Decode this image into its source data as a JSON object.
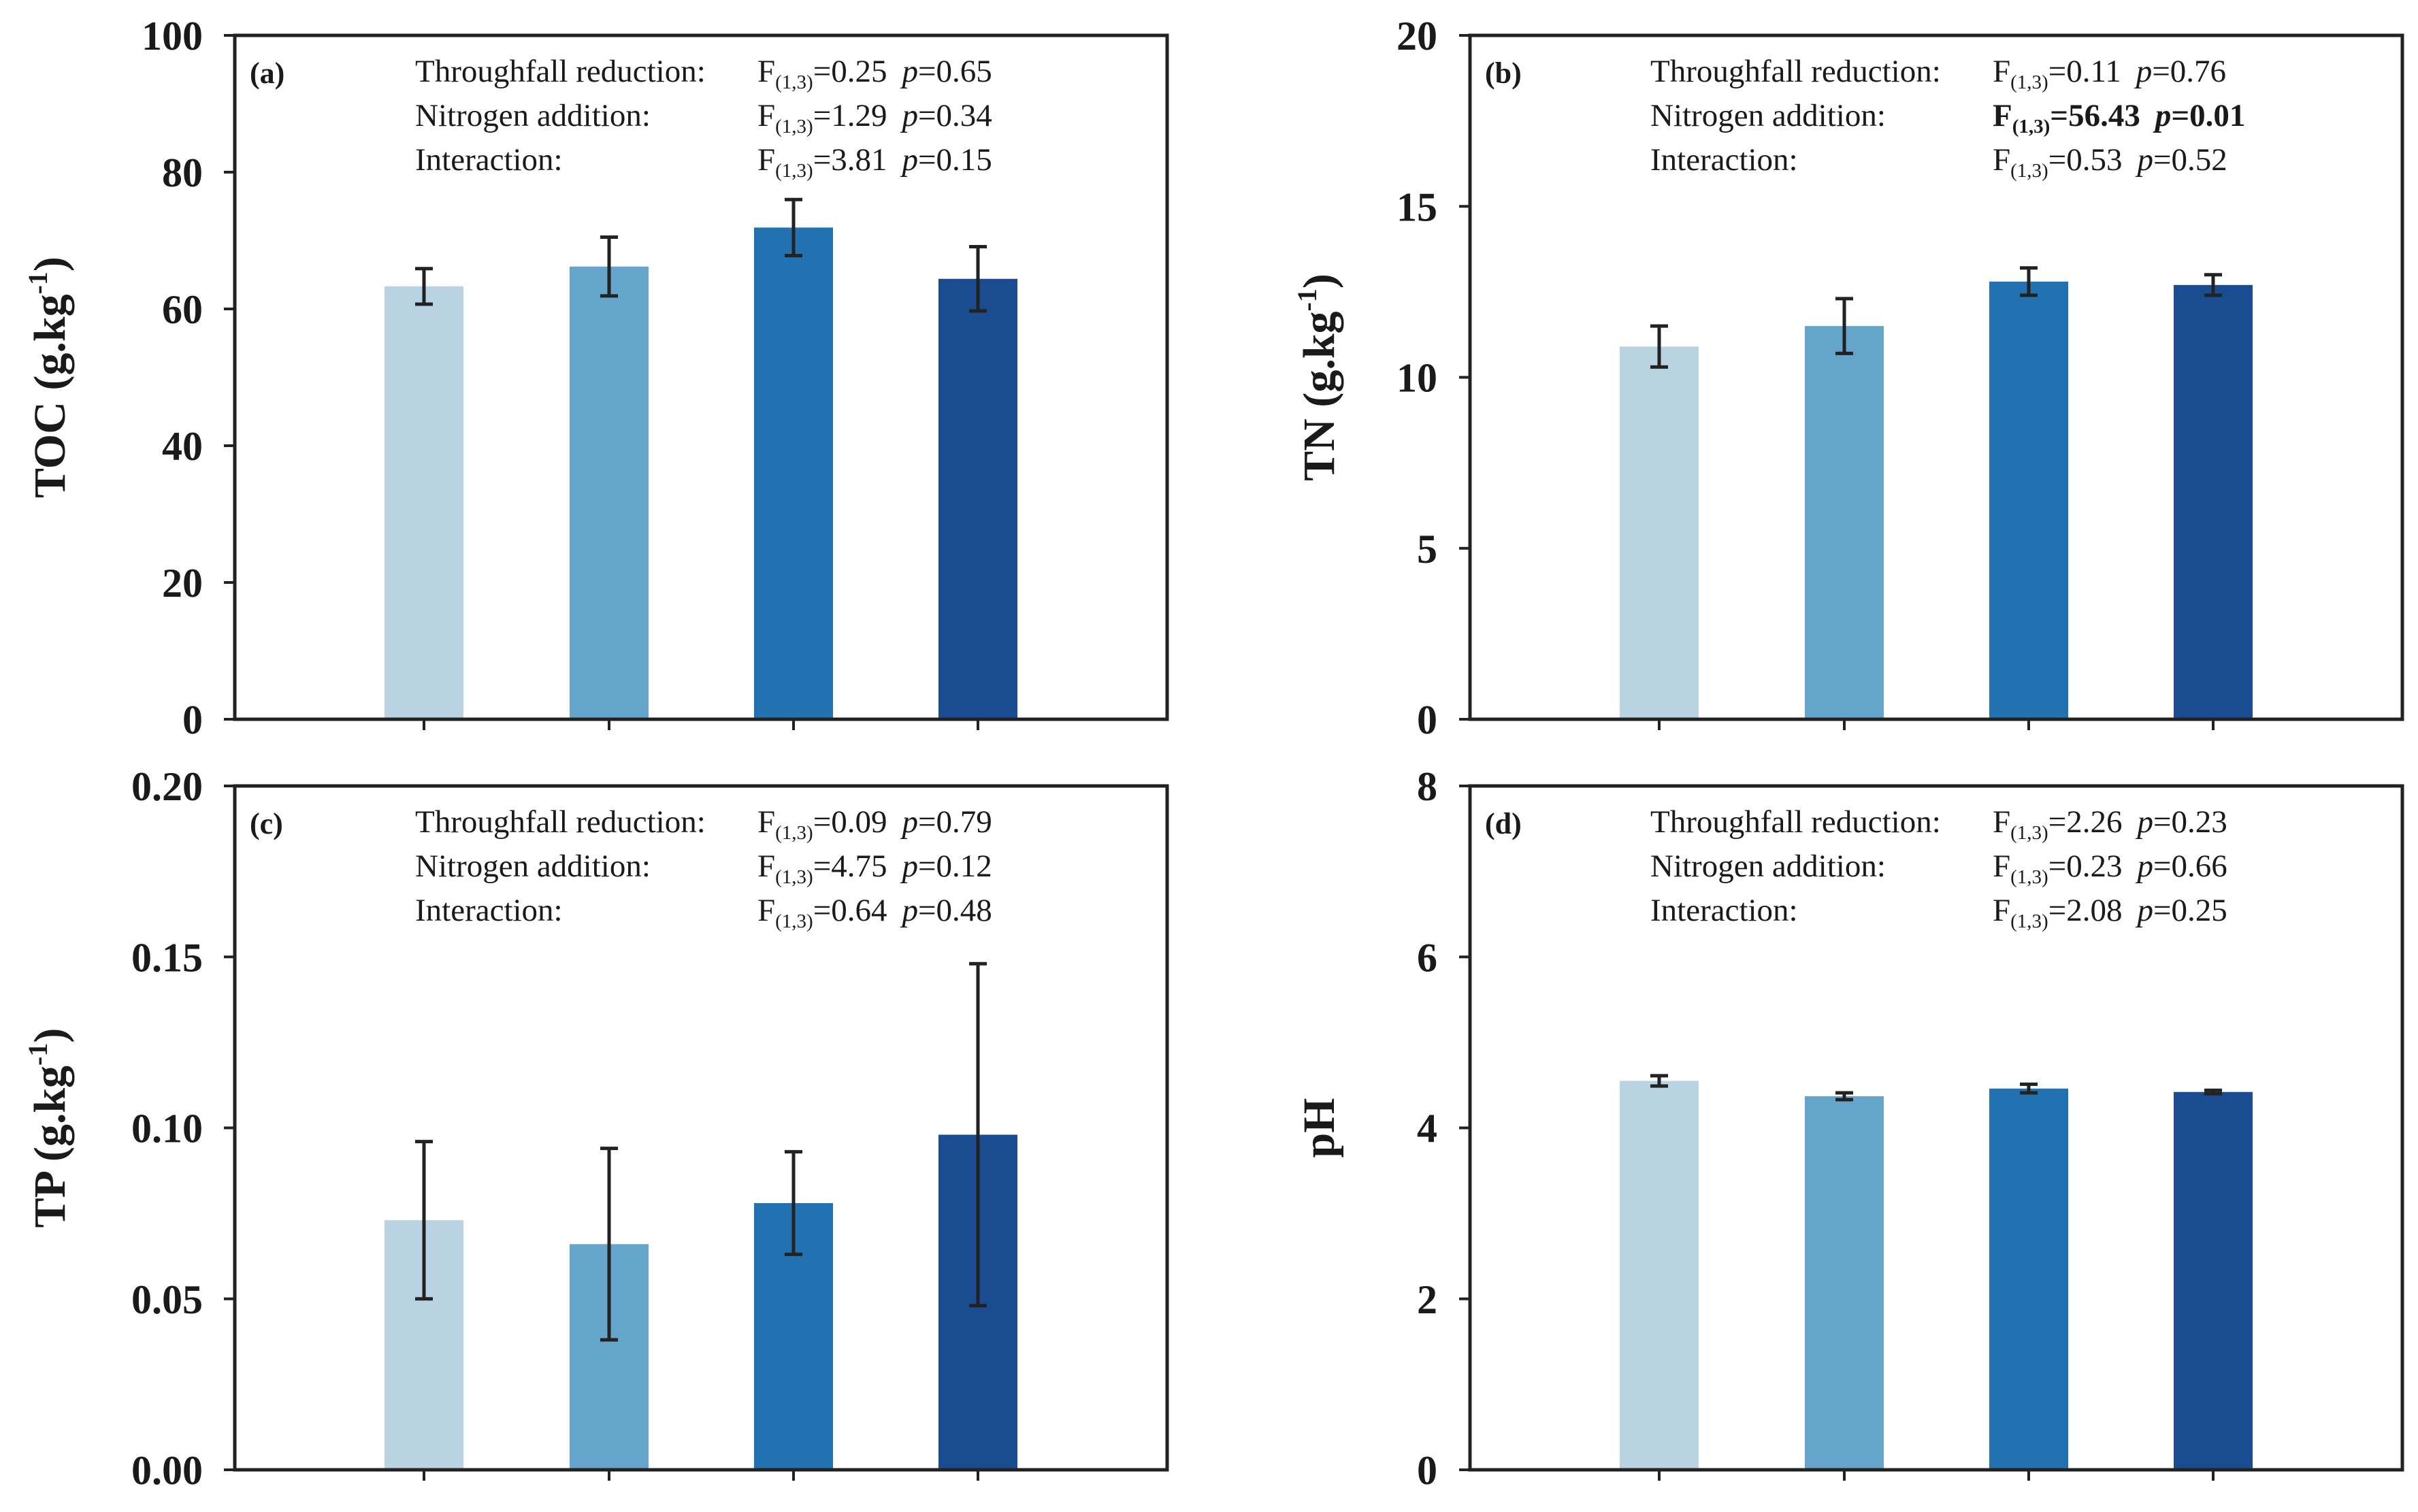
{
  "chart_data": [
    {
      "type": "bar",
      "panel_label": "(a)",
      "ylabel": "TOC (g.kg",
      "ylabel_sup": "-1",
      "ylabel_close": ")",
      "ylim": [
        0,
        100
      ],
      "yticks": [
        0,
        20,
        40,
        60,
        80,
        100
      ],
      "tick_labels": [
        "0",
        "20",
        "40",
        "60",
        "80",
        "100"
      ],
      "grid": false,
      "legend": "none",
      "values": [
        63.3,
        66.2,
        71.9,
        64.4
      ],
      "errors": [
        2.6,
        4.3,
        4.1,
        4.7
      ],
      "colors": [
        "#b9d3e3",
        "#66a5cb",
        "#2271b0",
        "#1a4c91"
      ],
      "stats": [
        {
          "label": "Throughfall reduction:",
          "f": "F",
          "sub": "(1,3)",
          "fval": "=0.25",
          "p": "p",
          "pval": "=0.65",
          "bold": false
        },
        {
          "label": "Nitrogen addition:",
          "f": "F",
          "sub": "(1,3)",
          "fval": "=1.29",
          "p": "p",
          "pval": "=0.34",
          "bold": false
        },
        {
          "label": "Interaction:",
          "f": "F",
          "sub": "(1,3)",
          "fval": "=3.81",
          "p": "p",
          "pval": "=0.15",
          "bold": false
        }
      ]
    },
    {
      "type": "bar",
      "panel_label": "(b)",
      "ylabel": "TN (g.kg",
      "ylabel_sup": "-1",
      "ylabel_close": ")",
      "ylim": [
        0,
        20
      ],
      "yticks": [
        0,
        5,
        10,
        15,
        20
      ],
      "tick_labels": [
        "0",
        "5",
        "10",
        "15",
        "20"
      ],
      "grid": false,
      "legend": "none",
      "values": [
        10.9,
        11.5,
        12.8,
        12.7
      ],
      "errors": [
        0.6,
        0.8,
        0.4,
        0.3
      ],
      "colors": [
        "#b9d3e3",
        "#66a5cb",
        "#2271b0",
        "#1a4c91"
      ],
      "stats": [
        {
          "label": "Throughfall reduction:",
          "f": "F",
          "sub": "(1,3)",
          "fval": "=0.11",
          "p": "p",
          "pval": "=0.76",
          "bold": false
        },
        {
          "label": "Nitrogen addition:",
          "f": "F",
          "sub": "(1,3)",
          "fval": "=56.43",
          "p": "p",
          "pval": "=0.01",
          "bold": true
        },
        {
          "label": "Interaction:",
          "f": "F",
          "sub": "(1,3)",
          "fval": "=0.53",
          "p": "p",
          "pval": "=0.52",
          "bold": false
        }
      ]
    },
    {
      "type": "bar",
      "panel_label": "(c)",
      "ylabel": "TP (g.kg",
      "ylabel_sup": "-1",
      "ylabel_close": ")",
      "ylim": [
        0,
        0.2
      ],
      "yticks": [
        0,
        0.05,
        0.1,
        0.15,
        0.2
      ],
      "tick_labels": [
        "0.00",
        "0.05",
        "0.10",
        "0.15",
        "0.20"
      ],
      "grid": false,
      "legend": "none",
      "values": [
        0.073,
        0.066,
        0.078,
        0.098
      ],
      "errors": [
        0.023,
        0.028,
        0.015,
        0.05
      ],
      "colors": [
        "#b9d3e3",
        "#66a5cb",
        "#2271b0",
        "#1a4c91"
      ],
      "stats": [
        {
          "label": "Throughfall reduction:",
          "f": "F",
          "sub": "(1,3)",
          "fval": "=0.09",
          "p": "p",
          "pval": "=0.79",
          "bold": false
        },
        {
          "label": "Nitrogen addition:",
          "f": "F",
          "sub": "(1,3)",
          "fval": "=4.75",
          "p": "p",
          "pval": "=0.12",
          "bold": false
        },
        {
          "label": "Interaction:",
          "f": "F",
          "sub": "(1,3)",
          "fval": "=0.64",
          "p": "p",
          "pval": "=0.48",
          "bold": false
        }
      ]
    },
    {
      "type": "bar",
      "panel_label": "(d)",
      "ylabel": "pH",
      "ylabel_sup": "",
      "ylabel_close": "",
      "ylim": [
        0,
        8
      ],
      "yticks": [
        0,
        2,
        4,
        6,
        8
      ],
      "tick_labels": [
        "0",
        "2",
        "4",
        "6",
        "8"
      ],
      "grid": false,
      "legend": "none",
      "values": [
        4.55,
        4.37,
        4.46,
        4.42
      ],
      "errors": [
        0.06,
        0.04,
        0.05,
        0.02
      ],
      "colors": [
        "#b9d3e3",
        "#66a5cb",
        "#2271b0",
        "#1a4c91"
      ],
      "stats": [
        {
          "label": "Throughfall reduction:",
          "f": "F",
          "sub": "(1,3)",
          "fval": "=2.26",
          "p": "p",
          "pval": "=0.23",
          "bold": false
        },
        {
          "label": "Nitrogen addition:",
          "f": "F",
          "sub": "(1,3)",
          "fval": "=0.23",
          "p": "p",
          "pval": "=0.66",
          "bold": false
        },
        {
          "label": "Interaction:",
          "f": "F",
          "sub": "(1,3)",
          "fval": "=2.08",
          "p": "p",
          "pval": "=0.25",
          "bold": false
        }
      ]
    }
  ]
}
